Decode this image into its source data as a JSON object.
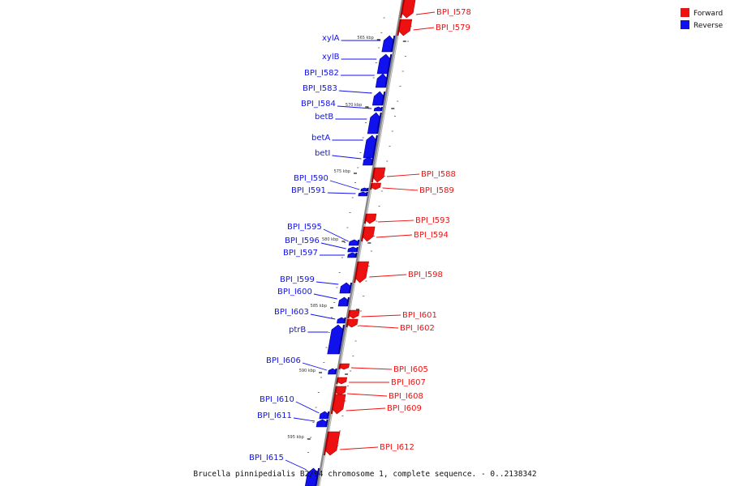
{
  "colors": {
    "forward": "#ee1111",
    "forward_dark": "#aa0000",
    "reverse": "#1111ee",
    "reverse_dark": "#000099",
    "axis": "#888888",
    "axis_light": "#cfcfcf"
  },
  "legend": {
    "forward_label": "Forward",
    "reverse_label": "Reverse"
  },
  "caption": "Brucella pinnipedialis B2/94 chromosome 1, complete sequence. - 0..2138342",
  "ticks": [
    {
      "label": "565 kbp"
    },
    {
      "label": "570 kbp"
    },
    {
      "label": "575 kbp"
    },
    {
      "label": "580 kbp"
    },
    {
      "label": "585 kbp"
    },
    {
      "label": "590 kbp"
    },
    {
      "label": "595 kbp"
    }
  ],
  "genes": [
    {
      "name": "BPI_I578",
      "strand": "forward"
    },
    {
      "name": "BPI_I579",
      "strand": "forward"
    },
    {
      "name": "xylA",
      "strand": "reverse"
    },
    {
      "name": "xylB",
      "strand": "reverse"
    },
    {
      "name": "BPI_I582",
      "strand": "reverse"
    },
    {
      "name": "BPI_I583",
      "strand": "reverse"
    },
    {
      "name": "BPI_I584",
      "strand": "reverse"
    },
    {
      "name": "betB",
      "strand": "reverse"
    },
    {
      "name": "betA",
      "strand": "reverse"
    },
    {
      "name": "betI",
      "strand": "reverse"
    },
    {
      "name": "BPI_I588",
      "strand": "forward"
    },
    {
      "name": "BPI_I589",
      "strand": "forward"
    },
    {
      "name": "BPI_I590",
      "strand": "reverse"
    },
    {
      "name": "BPI_I591",
      "strand": "reverse"
    },
    {
      "name": "BPI_I593",
      "strand": "forward"
    },
    {
      "name": "BPI_I594",
      "strand": "forward"
    },
    {
      "name": "BPI_I595",
      "strand": "reverse"
    },
    {
      "name": "BPI_I596",
      "strand": "reverse"
    },
    {
      "name": "BPI_I597",
      "strand": "reverse"
    },
    {
      "name": "BPI_I598",
      "strand": "forward"
    },
    {
      "name": "BPI_I599",
      "strand": "reverse"
    },
    {
      "name": "BPI_I600",
      "strand": "reverse"
    },
    {
      "name": "BPI_I601",
      "strand": "forward"
    },
    {
      "name": "BPI_I602",
      "strand": "forward"
    },
    {
      "name": "BPI_I603",
      "strand": "reverse"
    },
    {
      "name": "ptrB",
      "strand": "reverse"
    },
    {
      "name": "BPI_I605",
      "strand": "forward"
    },
    {
      "name": "BPI_I606",
      "strand": "reverse"
    },
    {
      "name": "BPI_I607",
      "strand": "forward"
    },
    {
      "name": "BPI_I608",
      "strand": "forward"
    },
    {
      "name": "BPI_I609",
      "strand": "forward"
    },
    {
      "name": "BPI_I610",
      "strand": "reverse"
    },
    {
      "name": "BPI_I611",
      "strand": "reverse"
    },
    {
      "name": "BPI_I612",
      "strand": "forward"
    },
    {
      "name": "BPI_I615",
      "strand": "reverse"
    }
  ]
}
